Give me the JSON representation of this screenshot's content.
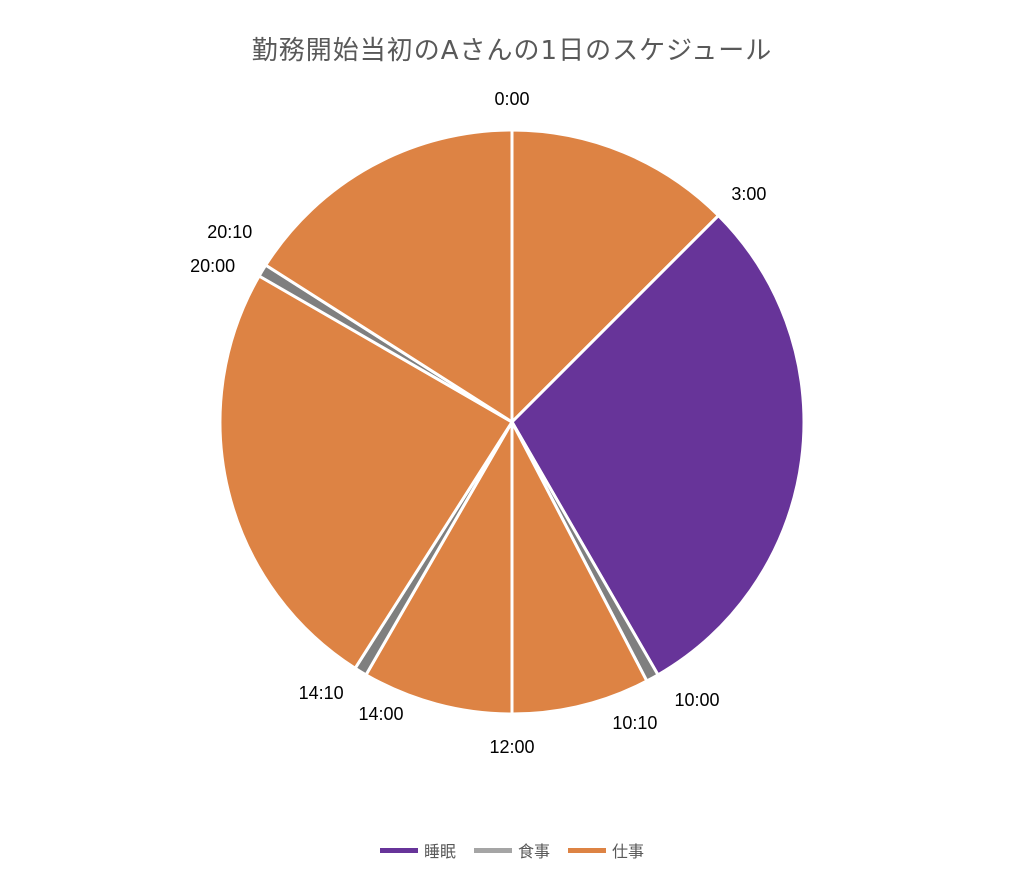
{
  "chart_data": {
    "type": "pie",
    "title": "勤務開始当初のAさんの1日のスケジュール",
    "start_angle_deg": 0,
    "direction": "clockwise",
    "series_colors": {
      "睡眠": "#673499",
      "食事": "#7f7f7f",
      "仕事": "#dd8344"
    },
    "legend_colors": {
      "睡眠": "#673499",
      "食事": "#a5a5a5",
      "仕事": "#dd8344"
    },
    "legend": [
      "睡眠",
      "食事",
      "仕事"
    ],
    "legend_position": "bottom",
    "slices": [
      {
        "category": "仕事",
        "start": "0:00",
        "end": "3:00",
        "minutes": 180
      },
      {
        "category": "睡眠",
        "start": "3:00",
        "end": "10:00",
        "minutes": 420
      },
      {
        "category": "食事",
        "start": "10:00",
        "end": "10:10",
        "minutes": 10
      },
      {
        "category": "仕事",
        "start": "10:10",
        "end": "12:00",
        "minutes": 110
      },
      {
        "category": "仕事",
        "start": "12:00",
        "end": "14:00",
        "minutes": 120
      },
      {
        "category": "食事",
        "start": "14:00",
        "end": "14:10",
        "minutes": 10
      },
      {
        "category": "仕事",
        "start": "14:10",
        "end": "20:00",
        "minutes": 350
      },
      {
        "category": "食事",
        "start": "20:00",
        "end": "20:10",
        "minutes": 10
      },
      {
        "category": "仕事",
        "start": "20:10",
        "end": "24:00",
        "minutes": 230
      }
    ],
    "labels": [
      "0:00",
      "3:00",
      "10:00",
      "10:10",
      "12:00",
      "14:00",
      "14:10",
      "20:00",
      "20:10"
    ]
  }
}
